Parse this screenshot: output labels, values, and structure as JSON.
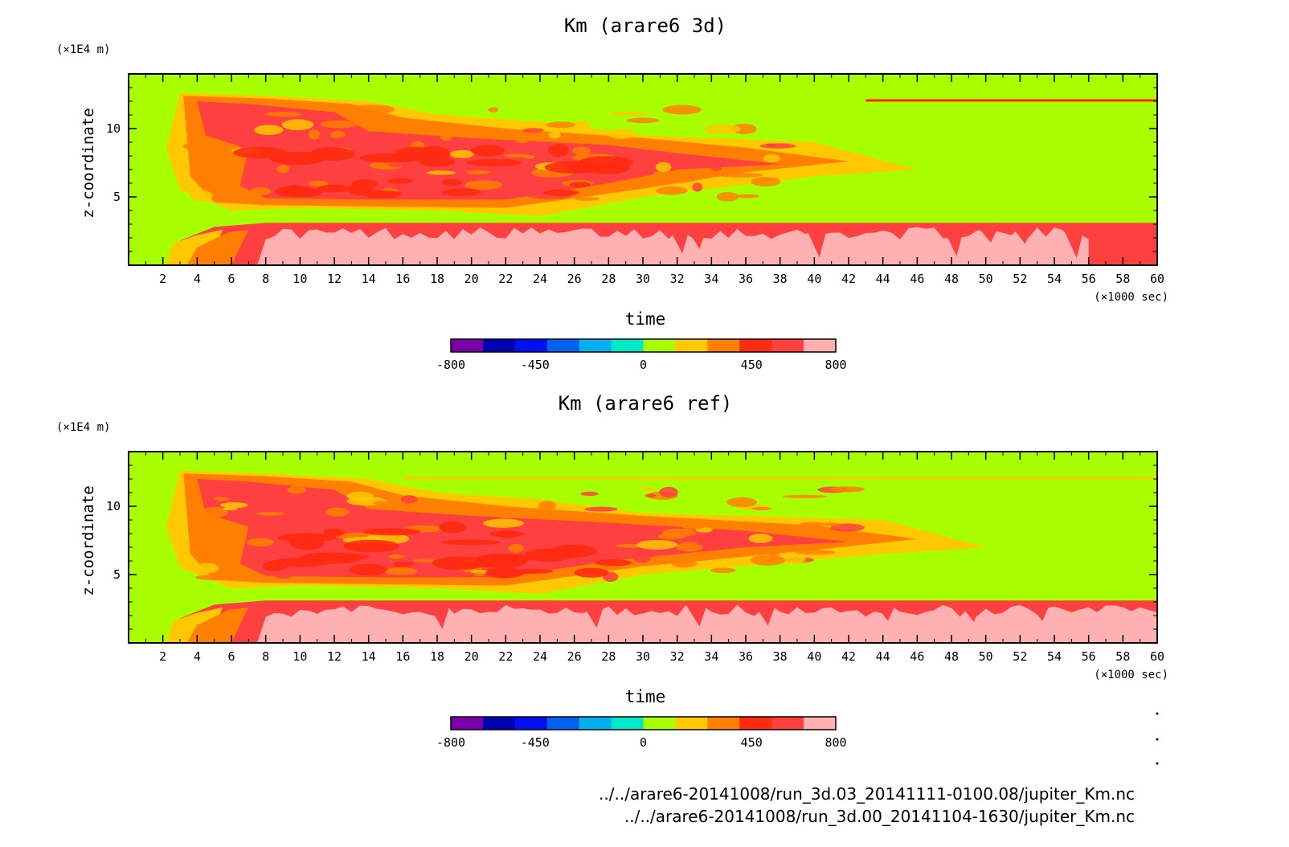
{
  "chart_data": [
    {
      "type": "heatmap",
      "title": "Km (arare6 3d)",
      "xlabel": "time",
      "ylabel": "z-coordinate",
      "x_unit": "(×1000 sec)",
      "y_unit": "(×1E4 m)",
      "xlim": [
        0,
        60
      ],
      "ylim": [
        0,
        14
      ],
      "x_ticks": [
        "2",
        "4",
        "6",
        "8",
        "10",
        "12",
        "14",
        "16",
        "18",
        "20",
        "22",
        "24",
        "26",
        "28",
        "30",
        "32",
        "34",
        "36",
        "38",
        "40",
        "42",
        "44",
        "46",
        "48",
        "50",
        "52",
        "54",
        "56",
        "58",
        "60"
      ],
      "y_ticks": [
        "5",
        "10"
      ],
      "y_tick_values": [
        5,
        10
      ],
      "levels": [
        -800,
        800
      ],
      "colorbar_labels": [
        "-800",
        "-450",
        "0",
        "450",
        "800"
      ],
      "colorbar_label_values": [
        -800,
        -450,
        0,
        450,
        800
      ],
      "colorbar_colors": [
        "#7a00a8",
        "#0000b4",
        "#0010f0",
        "#0060f0",
        "#00b0f0",
        "#00e8c8",
        "#a8ff00",
        "#ffc800",
        "#ff8000",
        "#ff2a10",
        "#ff4040",
        "#ffb0b0"
      ],
      "regions": {
        "background": "#a8ff00",
        "lower_band": {
          "x": [
            3,
            60
          ],
          "z": [
            0,
            3
          ],
          "color": "#ff4040"
        },
        "core": {
          "x": [
            4,
            46
          ],
          "z": [
            3.5,
            9.5
          ],
          "color": "#ff4040"
        },
        "upper_layer": {
          "x": [
            3,
            16
          ],
          "z": [
            9.5,
            12.5
          ],
          "color": "#ff8000"
        }
      }
    },
    {
      "type": "heatmap",
      "title": "Km (arare6 ref)",
      "xlabel": "time",
      "ylabel": "z-coordinate",
      "x_unit": "(×1000 sec)",
      "y_unit": "(×1E4 m)",
      "xlim": [
        0,
        60
      ],
      "ylim": [
        0,
        14
      ],
      "x_ticks": [
        "2",
        "4",
        "6",
        "8",
        "10",
        "12",
        "14",
        "16",
        "18",
        "20",
        "22",
        "24",
        "26",
        "28",
        "30",
        "32",
        "34",
        "36",
        "38",
        "40",
        "42",
        "44",
        "46",
        "48",
        "50",
        "52",
        "54",
        "56",
        "58",
        "60"
      ],
      "y_ticks": [
        "5",
        "10"
      ],
      "y_tick_values": [
        5,
        10
      ],
      "levels": [
        -800,
        800
      ],
      "colorbar_labels": [
        "-800",
        "-450",
        "0",
        "450",
        "800"
      ],
      "colorbar_label_values": [
        -800,
        -450,
        0,
        450,
        800
      ],
      "colorbar_colors": [
        "#7a00a8",
        "#0000b4",
        "#0010f0",
        "#0060f0",
        "#00b0f0",
        "#00e8c8",
        "#a8ff00",
        "#ffc800",
        "#ff8000",
        "#ff2a10",
        "#ff4040",
        "#ffb0b0"
      ],
      "regions": {
        "background": "#a8ff00",
        "lower_band": {
          "x": [
            3,
            60
          ],
          "z": [
            0,
            3
          ],
          "color": "#ff4040"
        },
        "core": {
          "x": [
            4,
            50
          ],
          "z": [
            3.5,
            9.5
          ],
          "color": "#ff4040"
        },
        "upper_layer": {
          "x": [
            3,
            16
          ],
          "z": [
            9.5,
            12.5
          ],
          "color": "#ff8000"
        }
      }
    }
  ],
  "footer": {
    "file_1": "../../arare6-20141008/run_3d.03_20141111-0100.08/jupiter_Km.nc",
    "file_2": "../../arare6-20141008/run_3d.00_20141104-1630/jupiter_Km.nc"
  }
}
